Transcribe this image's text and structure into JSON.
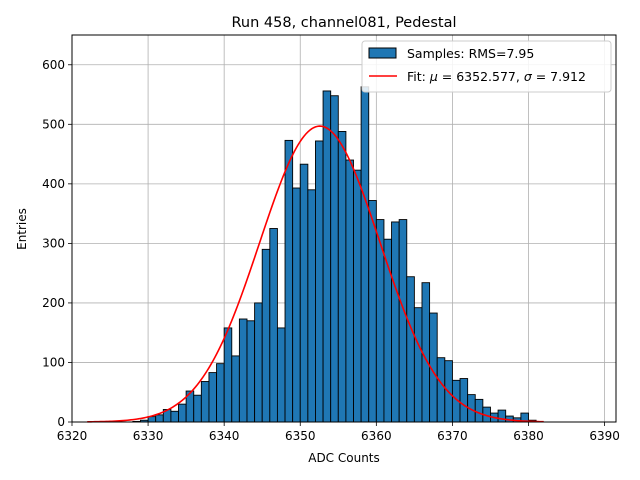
{
  "chart_data": {
    "type": "histogram",
    "title": "Run 458, channel081, Pedestal",
    "xlabel": "ADC Counts",
    "ylabel": "Entries",
    "xlim": [
      6320,
      6391.5
    ],
    "ylim": [
      0,
      650
    ],
    "xticks": [
      6320,
      6330,
      6340,
      6350,
      6360,
      6370,
      6380,
      6390
    ],
    "yticks": [
      0,
      100,
      200,
      300,
      400,
      500,
      600
    ],
    "grid": true,
    "bin_width": 1,
    "bin_start": 6328,
    "bin_counts": [
      1,
      3,
      9,
      12,
      21,
      18,
      30,
      52,
      45,
      68,
      83,
      98,
      158,
      111,
      173,
      170,
      200,
      290,
      325,
      158,
      473,
      393,
      433,
      390,
      472,
      556,
      548,
      488,
      440,
      423,
      563,
      372,
      340,
      307,
      336,
      340,
      244,
      192,
      234,
      183,
      108,
      103,
      70,
      73,
      46,
      38,
      25,
      15,
      20,
      10,
      7,
      15,
      3
    ],
    "series": [
      {
        "name": "Samples: RMS=7.95",
        "kind": "bars",
        "color": "#1f77b4",
        "edge": "#000000"
      },
      {
        "name": "Fit: μ = 6352.577, σ = 7.912",
        "kind": "line",
        "color": "#ff0000",
        "mu": 6352.577,
        "sigma": 7.912,
        "amplitude": 497,
        "range": [
          6322,
          6382
        ]
      }
    ],
    "legend": {
      "position": "top-right",
      "samples_label": "Samples: RMS=7.95",
      "fit_prefix": "Fit: ",
      "mu_symbol": "μ",
      "mu_text": " = 6352.577, ",
      "sigma_symbol": "σ",
      "sigma_text": " = 7.912"
    }
  }
}
